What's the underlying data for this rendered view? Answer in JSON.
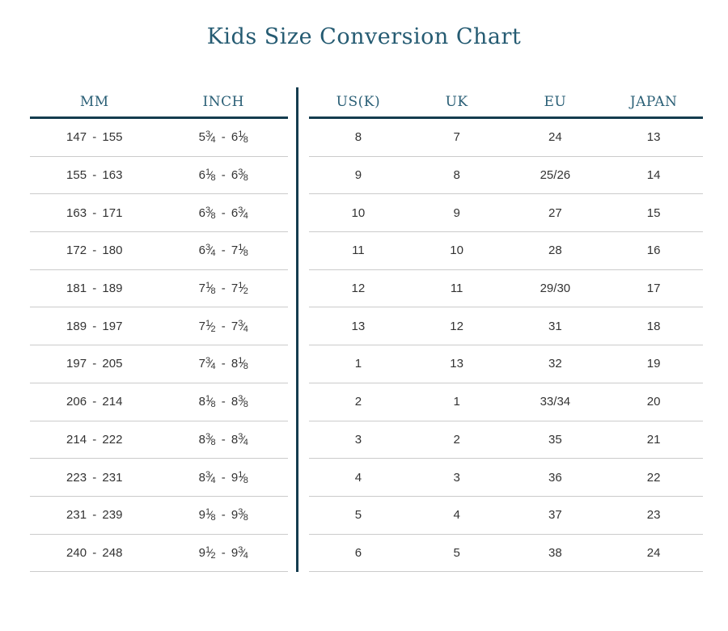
{
  "chart_data": {
    "type": "table",
    "title": "Kids Size Conversion Chart",
    "left_columns": [
      "MM",
      "INCH"
    ],
    "right_columns": [
      "US(K)",
      "UK",
      "EU",
      "JAPAN"
    ],
    "rows": [
      {
        "mm": "147 - 155",
        "inch": "5 3/4 - 6 1/8",
        "us_k": "8",
        "uk": "7",
        "eu": "24",
        "japan": "13"
      },
      {
        "mm": "155 - 163",
        "inch": "6 1/8 - 6 3/8",
        "us_k": "9",
        "uk": "8",
        "eu": "25/26",
        "japan": "14"
      },
      {
        "mm": "163 - 171",
        "inch": "6 3/8 - 6 3/4",
        "us_k": "10",
        "uk": "9",
        "eu": "27",
        "japan": "15"
      },
      {
        "mm": "172 - 180",
        "inch": "6 3/4 - 7 1/8",
        "us_k": "11",
        "uk": "10",
        "eu": "28",
        "japan": "16"
      },
      {
        "mm": "181 - 189",
        "inch": "7 1/8 - 7 1/2",
        "us_k": "12",
        "uk": "11",
        "eu": "29/30",
        "japan": "17"
      },
      {
        "mm": "189 - 197",
        "inch": "7 1/2 - 7 3/4",
        "us_k": "13",
        "uk": "12",
        "eu": "31",
        "japan": "18"
      },
      {
        "mm": "197 - 205",
        "inch": "7 3/4 - 8 1/8",
        "us_k": "1",
        "uk": "13",
        "eu": "32",
        "japan": "19"
      },
      {
        "mm": "206 - 214",
        "inch": "8 1/8 - 8 3/8",
        "us_k": "2",
        "uk": "1",
        "eu": "33/34",
        "japan": "20"
      },
      {
        "mm": "214 - 222",
        "inch": "8 3/8 - 8 3/4",
        "us_k": "3",
        "uk": "2",
        "eu": "35",
        "japan": "21"
      },
      {
        "mm": "223 - 231",
        "inch": "8 3/4 - 9 1/8",
        "us_k": "4",
        "uk": "3",
        "eu": "36",
        "japan": "22"
      },
      {
        "mm": "231 - 239",
        "inch": "9 1/8 - 9 3/8",
        "us_k": "5",
        "uk": "4",
        "eu": "37",
        "japan": "23"
      },
      {
        "mm": "240 - 248",
        "inch": "9 1/2 - 9 3/4",
        "us_k": "6",
        "uk": "5",
        "eu": "38",
        "japan": "24"
      }
    ],
    "colors": {
      "accent_text": "#255b72",
      "dark_line": "#143c4f",
      "light_line": "#cbcbcb",
      "body_text": "#333333"
    },
    "layout": {
      "legend": "none",
      "grid": "horizontal-rules"
    }
  }
}
